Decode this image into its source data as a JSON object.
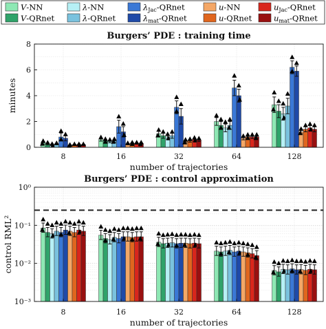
{
  "colors": {
    "V-NN": "#8ee8b4",
    "V-QRnet": "#2fa36a",
    "lambda-NN": "#b6f0f5",
    "lambda-QRnet": "#7ac2de",
    "lambda_Jac-QRnet": "#3a78d6",
    "lambda_mat-QRnet": "#1f4aa8",
    "u-NN": "#f4a766",
    "u-QRnet": "#e0661e",
    "u_Jac-QRnet": "#d9261c",
    "u_mat-QRnet": "#991010"
  },
  "legend": [
    {
      "key": "V-NN",
      "main": "V",
      "sub": "",
      "suffix": "-NN"
    },
    {
      "key": "lambda-NN",
      "main": "λ",
      "sub": "",
      "suffix": "-NN"
    },
    {
      "key": "lambda_Jac-QRnet",
      "main": "λ",
      "sub": "Jac",
      "suffix": "-QRnet"
    },
    {
      "key": "u-NN",
      "main": "u",
      "sub": "",
      "suffix": "-NN"
    },
    {
      "key": "u_Jac-QRnet",
      "main": "u",
      "sub": "Jac",
      "suffix": "-QRnet"
    },
    {
      "key": "V-QRnet",
      "main": "V",
      "sub": "",
      "suffix": "-QRnet"
    },
    {
      "key": "lambda-QRnet",
      "main": "λ",
      "sub": "",
      "suffix": "-QRnet"
    },
    {
      "key": "lambda_mat-QRnet",
      "main": "λ",
      "sub": "mat",
      "suffix": "-QRnet"
    },
    {
      "key": "u-QRnet",
      "main": "u",
      "sub": "",
      "suffix": "-QRnet"
    },
    {
      "key": "u_mat-QRnet",
      "main": "u",
      "sub": "mat",
      "suffix": "-QRnet"
    }
  ],
  "chart_data": [
    {
      "type": "bar",
      "title": "Burgers’ PDE : training time",
      "xlabel": "number of trajectories",
      "ylabel": "minutes",
      "categories": [
        "8",
        "16",
        "32",
        "64",
        "128"
      ],
      "ylim": [
        0,
        8
      ],
      "yticks": [
        "0",
        "2",
        "4",
        "6",
        "8"
      ],
      "scale": "linear",
      "grid": true,
      "series": [
        {
          "name": "V-NN",
          "values": [
            0.35,
            0.6,
            1.05,
            2.0,
            3.3
          ],
          "err": [
            0.1,
            0.12,
            0.2,
            0.3,
            0.6
          ]
        },
        {
          "name": "V-QRnet",
          "values": [
            0.25,
            0.5,
            0.9,
            1.7,
            2.8
          ],
          "err": [
            0.08,
            0.1,
            0.2,
            0.3,
            0.5
          ]
        },
        {
          "name": "λ-NN",
          "values": [
            0.2,
            0.45,
            0.8,
            1.5,
            2.6
          ],
          "err": [
            0.05,
            0.1,
            0.15,
            0.3,
            0.5
          ]
        },
        {
          "name": "λ-QRnet",
          "values": [
            0.25,
            0.5,
            0.9,
            1.7,
            3.2
          ],
          "err": [
            0.06,
            0.1,
            0.2,
            0.3,
            0.6
          ]
        },
        {
          "name": "λJac-QRnet",
          "values": [
            0.8,
            1.6,
            3.1,
            4.6,
            6.2
          ],
          "err": [
            0.3,
            0.5,
            0.5,
            0.6,
            0.5
          ]
        },
        {
          "name": "λmat-QRnet",
          "values": [
            0.7,
            1.2,
            2.4,
            4.0,
            5.9
          ],
          "err": [
            0.2,
            0.4,
            0.6,
            0.5,
            0.4
          ]
        },
        {
          "name": "u-NN",
          "values": [
            0.15,
            0.25,
            0.45,
            0.7,
            1.2
          ],
          "err": [
            0.04,
            0.06,
            0.1,
            0.12,
            0.15
          ]
        },
        {
          "name": "u-QRnet",
          "values": [
            0.2,
            0.3,
            0.5,
            0.8,
            1.4
          ],
          "err": [
            0.04,
            0.06,
            0.1,
            0.12,
            0.2
          ]
        },
        {
          "name": "uJac-QRnet",
          "values": [
            0.2,
            0.3,
            0.6,
            0.8,
            1.5
          ],
          "err": [
            0.04,
            0.06,
            0.1,
            0.12,
            0.2
          ]
        },
        {
          "name": "umat-QRnet",
          "values": [
            0.2,
            0.3,
            0.55,
            0.8,
            1.4
          ],
          "err": [
            0.04,
            0.06,
            0.1,
            0.12,
            0.2
          ]
        }
      ]
    },
    {
      "type": "bar",
      "title": "Burgers’ PDE : control approximation",
      "xlabel": "number of trajectories",
      "ylabel": "control RML²",
      "categories": [
        "8",
        "16",
        "32",
        "64",
        "128"
      ],
      "ylim": [
        0.001,
        1
      ],
      "yticks": [
        "10⁻³",
        "10⁻²",
        "10⁻¹",
        "10⁰"
      ],
      "scale": "log",
      "grid": true,
      "reference_line": 0.25,
      "series": [
        {
          "name": "V-NN",
          "values": [
            0.085,
            0.055,
            0.036,
            0.021,
            0.0065
          ]
        },
        {
          "name": "V-QRnet",
          "values": [
            0.065,
            0.045,
            0.033,
            0.02,
            0.006
          ]
        },
        {
          "name": "λ-NN",
          "values": [
            0.06,
            0.042,
            0.034,
            0.021,
            0.007
          ]
        },
        {
          "name": "λ-QRnet",
          "values": [
            0.07,
            0.048,
            0.035,
            0.022,
            0.0068
          ]
        },
        {
          "name": "λJac-QRnet",
          "values": [
            0.065,
            0.045,
            0.033,
            0.02,
            0.0072
          ]
        },
        {
          "name": "λmat-QRnet",
          "values": [
            0.075,
            0.05,
            0.034,
            0.021,
            0.0068
          ]
        },
        {
          "name": "u-NN",
          "values": [
            0.07,
            0.05,
            0.034,
            0.02,
            0.0069
          ]
        },
        {
          "name": "u-QRnet",
          "values": [
            0.065,
            0.048,
            0.033,
            0.019,
            0.0066
          ]
        },
        {
          "name": "uJac-QRnet",
          "values": [
            0.075,
            0.05,
            0.034,
            0.018,
            0.007
          ]
        },
        {
          "name": "umat-QRnet",
          "values": [
            0.07,
            0.05,
            0.033,
            0.016,
            0.0068
          ]
        }
      ]
    }
  ]
}
